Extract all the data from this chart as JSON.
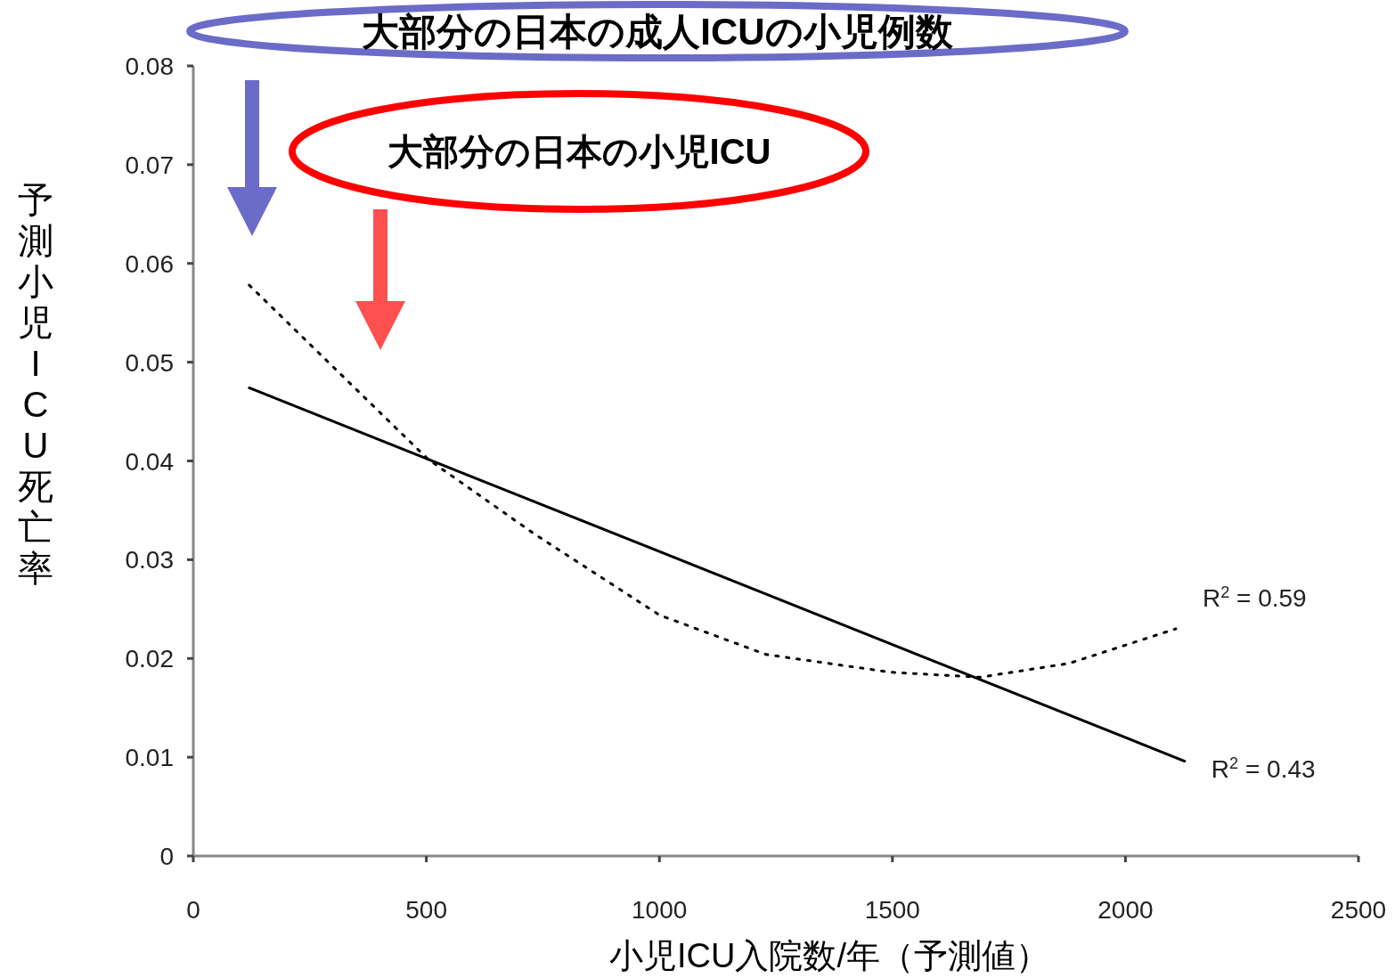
{
  "chart_data": {
    "type": "line",
    "xlabel": "小児ICU入院数/年（予測値）",
    "ylabel": "予測小児ICU死亡率",
    "series": [
      {
        "color": "#000000",
        "line_style": "solid",
        "x": [
          120,
          2127
        ],
        "values": [
          0.0474,
          0.0096
        ]
      },
      {
        "color": "#000000",
        "line_style": "dotted",
        "x": [
          120,
          503,
          732,
          1000,
          1229,
          1497,
          1688,
          1879,
          2108
        ],
        "values": [
          0.0578,
          0.0402,
          0.0326,
          0.0244,
          0.0204,
          0.0186,
          0.0181,
          0.0195,
          0.023
        ]
      }
    ],
    "xlim": [
      0,
      2500
    ],
    "xticks": [
      0,
      500,
      1000,
      1500,
      2000,
      2500
    ],
    "ylim": [
      0,
      0.08
    ],
    "yticks": [
      0,
      0.01,
      0.02,
      0.03,
      0.04,
      0.05,
      0.06,
      0.07,
      0.08
    ],
    "annotations": [
      "大部分の日本の成人ICUの小児例数",
      "大部分の日本の小児ICU",
      {
        "text": "R$^{2}$ = 0.59",
        "x": 2108,
        "y": 0.023
      },
      {
        "text": "R$^{2}$ = 0.43",
        "x": 2127,
        "y": 0.0096
      }
    ],
    "grid": false
  }
}
